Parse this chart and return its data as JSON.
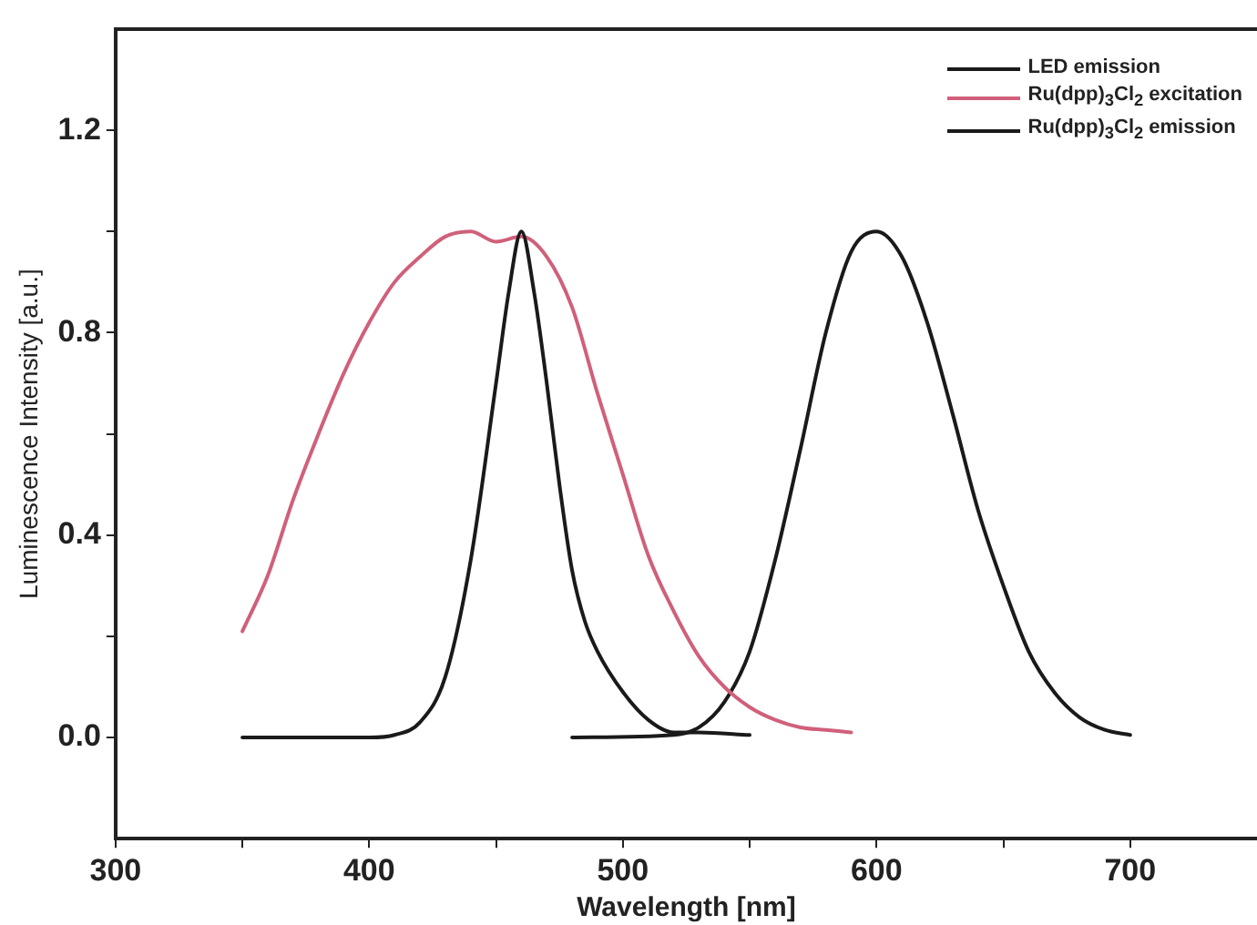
{
  "chart_data": {
    "type": "line",
    "xlabel": "Wavelength [nm]",
    "ylabel": "Luminescence Intensity [a.u.]",
    "xlim": [
      300,
      750
    ],
    "xticks": [
      300,
      {
        "value": 350,
        "label": null
      },
      400,
      {
        "value": 450,
        "label": null
      },
      500,
      {
        "value": 550,
        "label": null
      },
      600,
      {
        "value": 650,
        "label": null
      },
      700
    ],
    "ylim": [
      -0.2,
      1.4
    ],
    "yticks": [
      {
        "value": 0,
        "label": "0.0"
      },
      {
        "value": 0.2,
        "label": null
      },
      {
        "value": 0.4,
        "label": "0.4"
      },
      {
        "value": 0.6,
        "label": null
      },
      {
        "value": 0.8,
        "label": "0.8"
      },
      {
        "value": 1.0,
        "label": null
      },
      {
        "value": 1.2,
        "label": "1.2"
      }
    ],
    "grid": false,
    "legend": "top right",
    "marker": "none",
    "line_style": "solid",
    "series": [
      {
        "name": "LED emission",
        "color": "#1a1a1a",
        "x": [
          350,
          400,
          410,
          420,
          430,
          440,
          450,
          455,
          460,
          465,
          470,
          475,
          480,
          485,
          490,
          500,
          510,
          520,
          530,
          550
        ],
        "values": [
          0,
          0,
          0.005,
          0.03,
          0.12,
          0.35,
          0.7,
          0.88,
          1.0,
          0.88,
          0.7,
          0.5,
          0.33,
          0.23,
          0.17,
          0.09,
          0.035,
          0.01,
          0.01,
          0.005
        ]
      },
      {
        "name": "Ru(dpp)$_{3}$Cl$_{2}$ excitation",
        "color": "#d0607a",
        "x": [
          350,
          360,
          370,
          380,
          390,
          400,
          410,
          420,
          430,
          440,
          450,
          460,
          470,
          480,
          490,
          500,
          510,
          520,
          530,
          540,
          550,
          560,
          570,
          580,
          590
        ],
        "values": [
          0.21,
          0.32,
          0.47,
          0.6,
          0.72,
          0.82,
          0.9,
          0.95,
          0.99,
          1.0,
          0.98,
          0.99,
          0.95,
          0.85,
          0.68,
          0.52,
          0.36,
          0.25,
          0.16,
          0.1,
          0.06,
          0.035,
          0.02,
          0.015,
          0.01
        ]
      },
      {
        "name": "Ru(dpp)$_{3}$Cl$_{2}$ emission",
        "color": "#1a1a1a",
        "x": [
          480,
          520,
          530,
          540,
          550,
          560,
          570,
          580,
          590,
          600,
          610,
          620,
          630,
          640,
          650,
          660,
          670,
          680,
          690,
          700
        ],
        "values": [
          0,
          0.005,
          0.02,
          0.07,
          0.17,
          0.35,
          0.57,
          0.8,
          0.96,
          1.0,
          0.95,
          0.82,
          0.64,
          0.45,
          0.3,
          0.17,
          0.09,
          0.04,
          0.015,
          0.005
        ]
      }
    ]
  }
}
